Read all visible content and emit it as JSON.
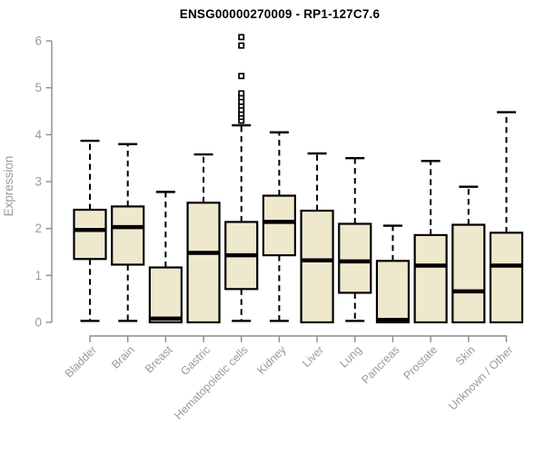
{
  "chart_data": {
    "type": "boxplot",
    "title": "ENSG00000270009 - RP1-127C7.6",
    "ylabel": "Expression",
    "xlabel": "",
    "ylim": [
      0,
      6
    ],
    "yticks": [
      0,
      1,
      2,
      3,
      4,
      5,
      6
    ],
    "grid": false,
    "legend": "none",
    "categories": [
      "Bladder",
      "Brain",
      "Breast",
      "Gastric",
      "Hematopoietic cells",
      "Kidney",
      "Liver",
      "Lung",
      "Pancreas",
      "Prostate",
      "Skin",
      "Unknown / Other"
    ],
    "series": [
      {
        "category": "Bladder",
        "whisker_low": 0.03,
        "q1": 1.35,
        "median": 1.97,
        "q3": 2.4,
        "whisker_high": 3.87,
        "outliers": []
      },
      {
        "category": "Brain",
        "whisker_low": 0.03,
        "q1": 1.23,
        "median": 2.03,
        "q3": 2.47,
        "whisker_high": 3.8,
        "outliers": []
      },
      {
        "category": "Breast",
        "whisker_low": 0.0,
        "q1": 0.0,
        "median": 0.08,
        "q3": 1.17,
        "whisker_high": 2.78,
        "outliers": []
      },
      {
        "category": "Gastric",
        "whisker_low": 0.0,
        "q1": 0.0,
        "median": 1.48,
        "q3": 2.55,
        "whisker_high": 3.58,
        "outliers": []
      },
      {
        "category": "Hematopoietic cells",
        "whisker_low": 0.03,
        "q1": 0.71,
        "median": 1.43,
        "q3": 2.14,
        "whisker_high": 4.2,
        "outliers": [
          4.3,
          4.38,
          4.45,
          4.53,
          4.62,
          4.7,
          4.8,
          4.88,
          5.25,
          5.9,
          6.08
        ]
      },
      {
        "category": "Kidney",
        "whisker_low": 0.03,
        "q1": 1.43,
        "median": 2.14,
        "q3": 2.7,
        "whisker_high": 4.05,
        "outliers": []
      },
      {
        "category": "Liver",
        "whisker_low": 0.0,
        "q1": 0.0,
        "median": 1.32,
        "q3": 2.38,
        "whisker_high": 3.6,
        "outliers": []
      },
      {
        "category": "Lung",
        "whisker_low": 0.03,
        "q1": 0.63,
        "median": 1.3,
        "q3": 2.1,
        "whisker_high": 3.5,
        "outliers": []
      },
      {
        "category": "Pancreas",
        "whisker_low": 0.0,
        "q1": 0.0,
        "median": 0.05,
        "q3": 1.31,
        "whisker_high": 2.06,
        "outliers": []
      },
      {
        "category": "Prostate",
        "whisker_low": 0.0,
        "q1": 0.0,
        "median": 1.21,
        "q3": 1.86,
        "whisker_high": 3.44,
        "outliers": []
      },
      {
        "category": "Skin",
        "whisker_low": 0.0,
        "q1": 0.0,
        "median": 0.66,
        "q3": 2.08,
        "whisker_high": 2.89,
        "outliers": []
      },
      {
        "category": "Unknown / Other",
        "whisker_low": 0.0,
        "q1": 0.0,
        "median": 1.21,
        "q3": 1.91,
        "whisker_high": 4.48,
        "outliers": []
      }
    ],
    "colors": {
      "background": "#ffffff",
      "box_fill": "#eee8cd",
      "box_border": "#000000",
      "median": "#000000",
      "whisker": "#000000",
      "outlier_fill": "#ffffff",
      "axis": "#8c8c8c",
      "tick_text": "#9a9a9a",
      "title_text": "#000000"
    }
  }
}
